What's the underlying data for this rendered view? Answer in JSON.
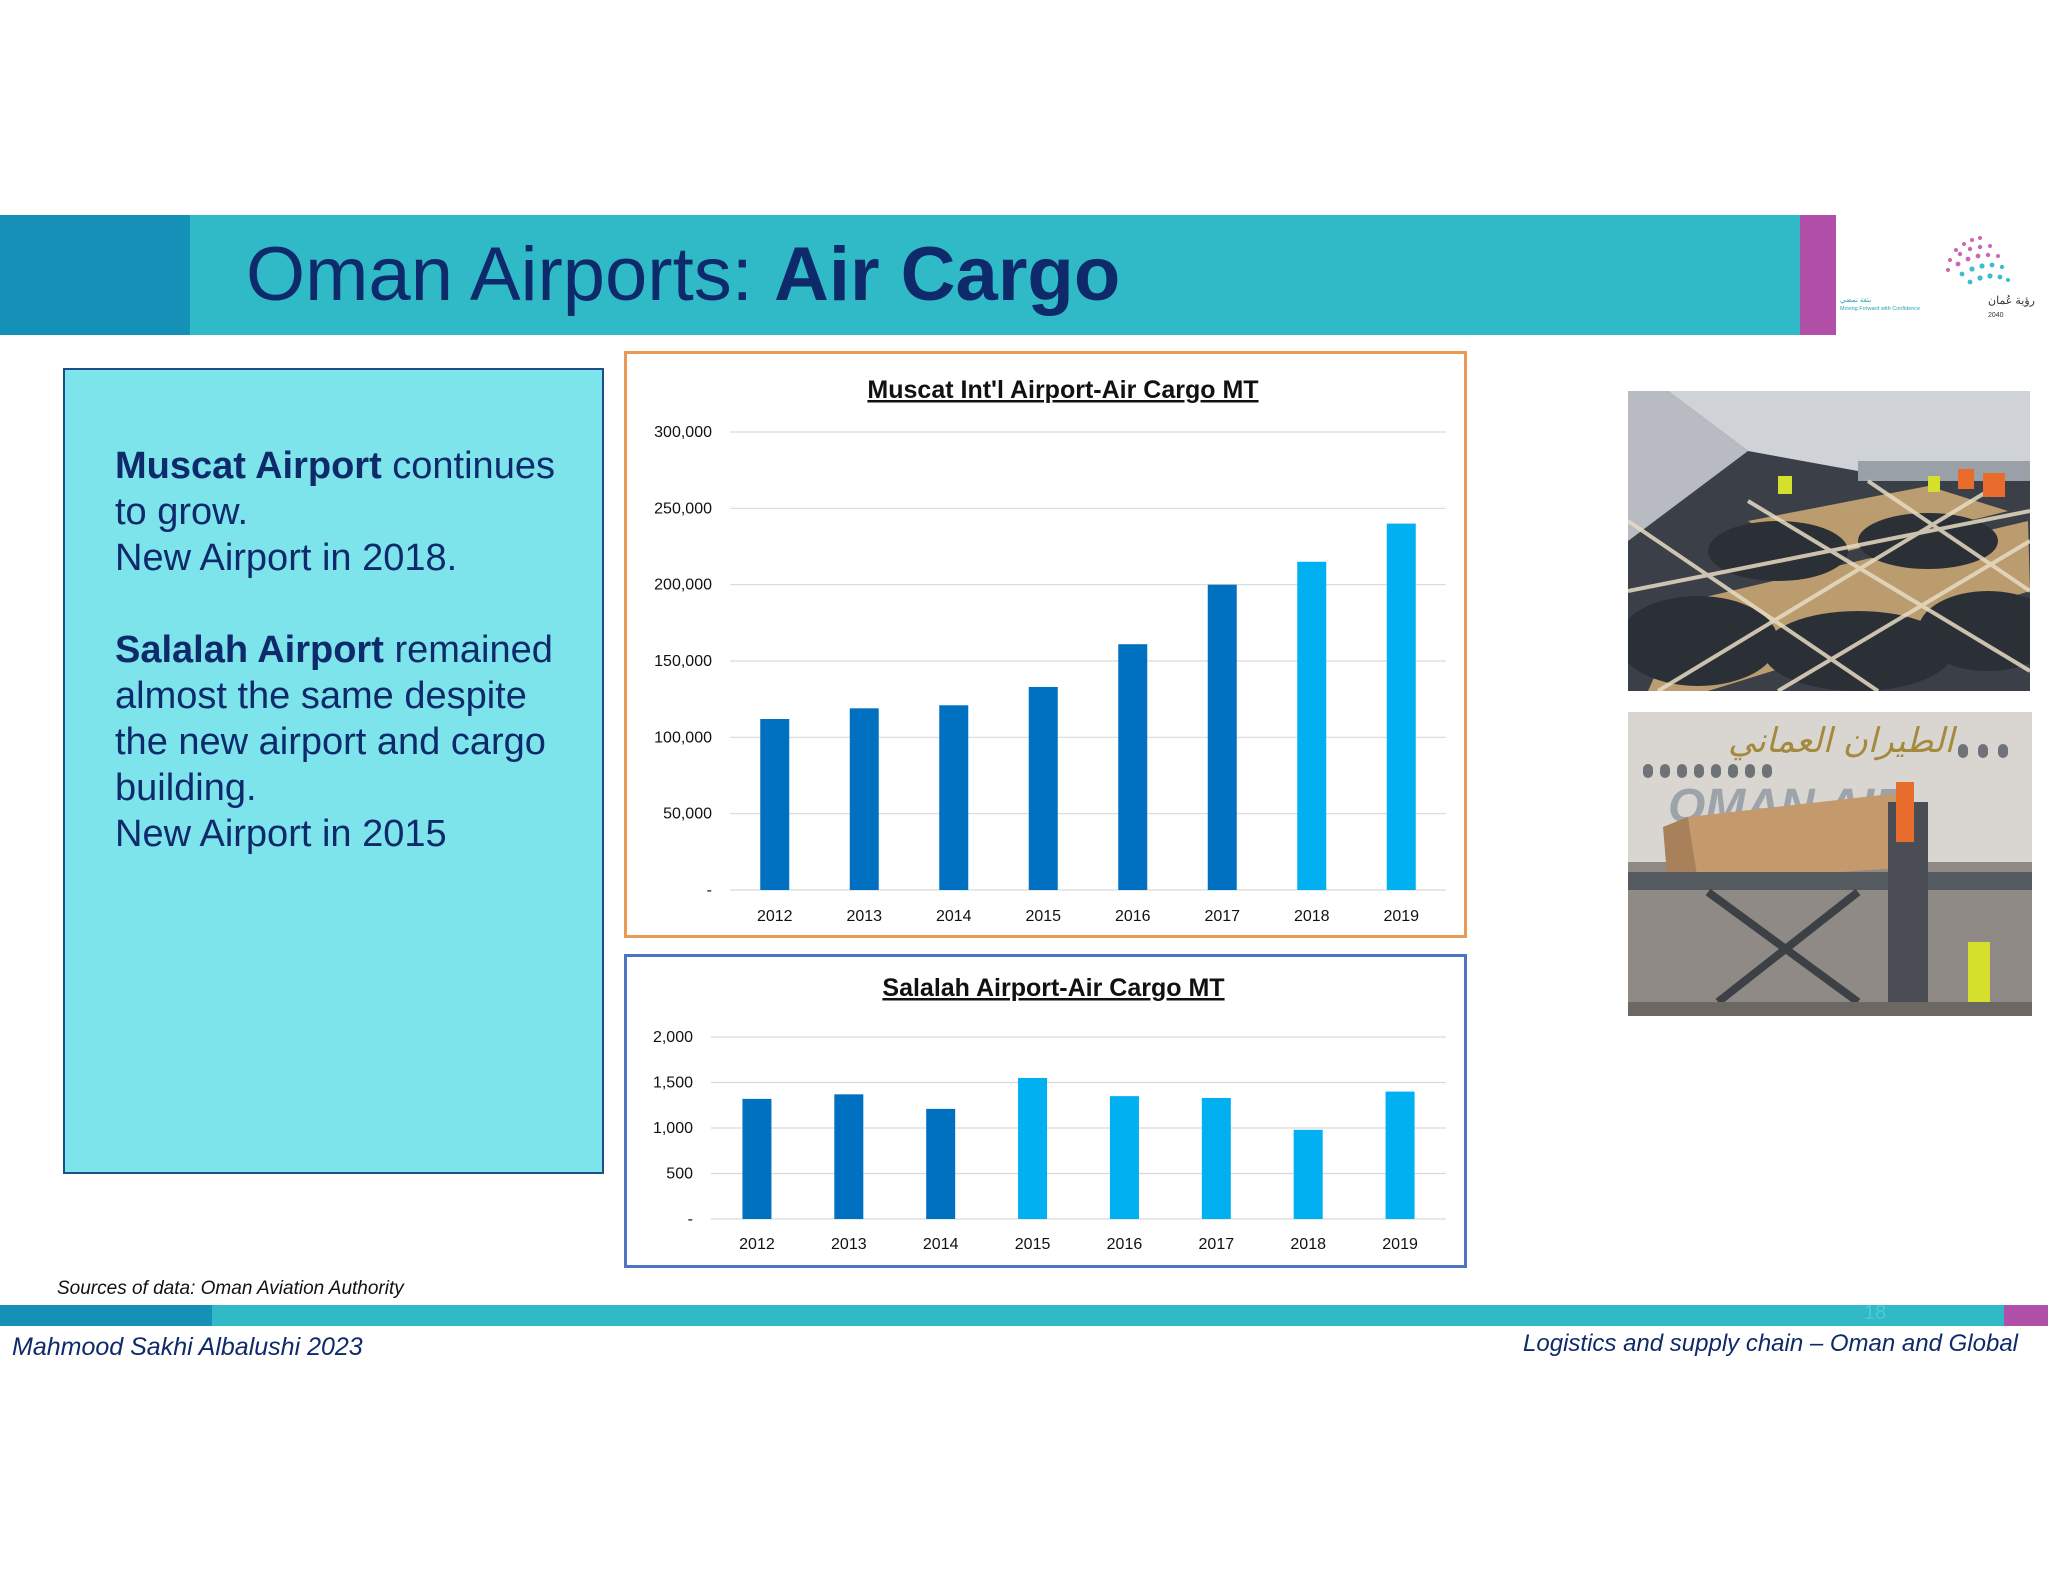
{
  "slide": {
    "title_regular": "Oman Airports: ",
    "title_bold": "Air Cargo",
    "logo_text_english": "Moving Forward with Confidence",
    "logo_text_year": "2040",
    "logo_text_arabic": "رؤية عُمان",
    "logo_text_arabic_tagline": "بثقة نمضي"
  },
  "textbox": {
    "para1_bold": "Muscat Airport",
    "para1_rest": " continues to grow.",
    "para1_line2": "New Airport in 2018.",
    "para2_bold": "Salalah Airport",
    "para2_rest": " remained almost the same despite the new airport and cargo building.",
    "para2_line2": "New Airport in 2015"
  },
  "chart_data": [
    {
      "type": "bar",
      "title": "Muscat Int'l Airport-Air Cargo MT",
      "categories": [
        "2012",
        "2013",
        "2014",
        "2015",
        "2016",
        "2017",
        "2018",
        "2019"
      ],
      "values": [
        112000,
        119000,
        121000,
        133000,
        161000,
        200000,
        215000,
        240000
      ],
      "bar_colors": [
        "#0070c0",
        "#0070c0",
        "#0070c0",
        "#0070c0",
        "#0070c0",
        "#0070c0",
        "#00b0f0",
        "#00b0f0"
      ],
      "ylim": [
        0,
        300000
      ],
      "yticks": [
        0,
        50000,
        100000,
        150000,
        200000,
        250000,
        300000
      ],
      "ytick_labels": [
        "-",
        "50,000",
        "100,000",
        "150,000",
        "200,000",
        "250,000",
        "300,000"
      ],
      "grid": true
    },
    {
      "type": "bar",
      "title": "Salalah Airport-Air Cargo MT",
      "categories": [
        "2012",
        "2013",
        "2014",
        "2015",
        "2016",
        "2017",
        "2018",
        "2019"
      ],
      "values": [
        1320,
        1370,
        1210,
        1550,
        1350,
        1330,
        980,
        1400
      ],
      "bar_colors": [
        "#0070c0",
        "#0070c0",
        "#0070c0",
        "#00b0f0",
        "#00b0f0",
        "#00b0f0",
        "#00b0f0",
        "#00b0f0"
      ],
      "ylim": [
        0,
        2000
      ],
      "yticks": [
        0,
        500,
        1000,
        1500,
        2000
      ],
      "ytick_labels": [
        "-",
        "500",
        "1,000",
        "1,500",
        "2,000"
      ],
      "grid": true
    }
  ],
  "photos": {
    "photo1_desc_icon": "cargo-cabin-photo",
    "photo2_desc_icon": "cargo-loading-photo",
    "aircraft_livery_text": "OMAN AIR"
  },
  "footer": {
    "sources": "Sources of data: Oman Aviation Authority",
    "author": "Mahmood Sakhi Albalushi   2023",
    "right_text": "Logistics and supply chain – Oman and Global",
    "page_number": "18"
  }
}
